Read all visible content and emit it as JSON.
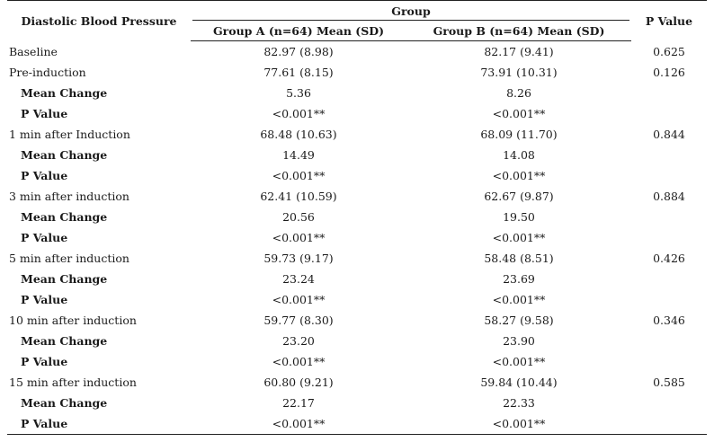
{
  "header": {
    "variable": "Diastolic Blood Pressure",
    "group": "Group",
    "group_a": "Group A (n=64) Mean (SD)",
    "group_b": "Group B (n=64) Mean (SD)",
    "p_value": "P Value"
  },
  "rows": [
    {
      "label": "Baseline",
      "a": "82.97 (8.98)",
      "b": "82.17 (9.41)",
      "p": "0.625",
      "sub": false
    },
    {
      "label": "Pre-induction",
      "a": "77.61 (8.15)",
      "b": "73.91 (10.31)",
      "p": "0.126",
      "sub": false
    },
    {
      "label": "Mean Change",
      "a": "5.36",
      "b": "8.26",
      "p": "",
      "sub": true
    },
    {
      "label": "P Value",
      "a": "<0.001**",
      "b": "<0.001**",
      "p": "",
      "sub": true
    },
    {
      "label": "1 min after Induction",
      "a": "68.48 (10.63)",
      "b": "68.09 (11.70)",
      "p": "0.844",
      "sub": false
    },
    {
      "label": "Mean Change",
      "a": "14.49",
      "b": "14.08",
      "p": "",
      "sub": true
    },
    {
      "label": "P Value",
      "a": "<0.001**",
      "b": "<0.001**",
      "p": "",
      "sub": true
    },
    {
      "label": "3 min after induction",
      "a": "62.41 (10.59)",
      "b": "62.67 (9.87)",
      "p": "0.884",
      "sub": false
    },
    {
      "label": "Mean Change",
      "a": "20.56",
      "b": "19.50",
      "p": "",
      "sub": true
    },
    {
      "label": "P Value",
      "a": "<0.001**",
      "b": "<0.001**",
      "p": "",
      "sub": true
    },
    {
      "label": "5 min after induction",
      "a": "59.73 (9.17)",
      "b": "58.48 (8.51)",
      "p": "0.426",
      "sub": false
    },
    {
      "label": "Mean Change",
      "a": "23.24",
      "b": "23.69",
      "p": "",
      "sub": true
    },
    {
      "label": "P Value",
      "a": "<0.001**",
      "b": "<0.001**",
      "p": "",
      "sub": true
    },
    {
      "label": "10 min after induction",
      "a": "59.77 (8.30)",
      "b": "58.27 (9.58)",
      "p": "0.346",
      "sub": false
    },
    {
      "label": "Mean Change",
      "a": "23.20",
      "b": "23.90",
      "p": "",
      "sub": true
    },
    {
      "label": "P Value",
      "a": "<0.001**",
      "b": "<0.001**",
      "p": "",
      "sub": true
    },
    {
      "label": "15 min after induction",
      "a": "60.80 (9.21)",
      "b": "59.84 (10.44)",
      "p": "0.585",
      "sub": false
    },
    {
      "label": "Mean Change",
      "a": "22.17",
      "b": "22.33",
      "p": "",
      "sub": true
    },
    {
      "label": "P Value",
      "a": "<0.001**",
      "b": "<0.001**",
      "p": "",
      "sub": true
    }
  ]
}
